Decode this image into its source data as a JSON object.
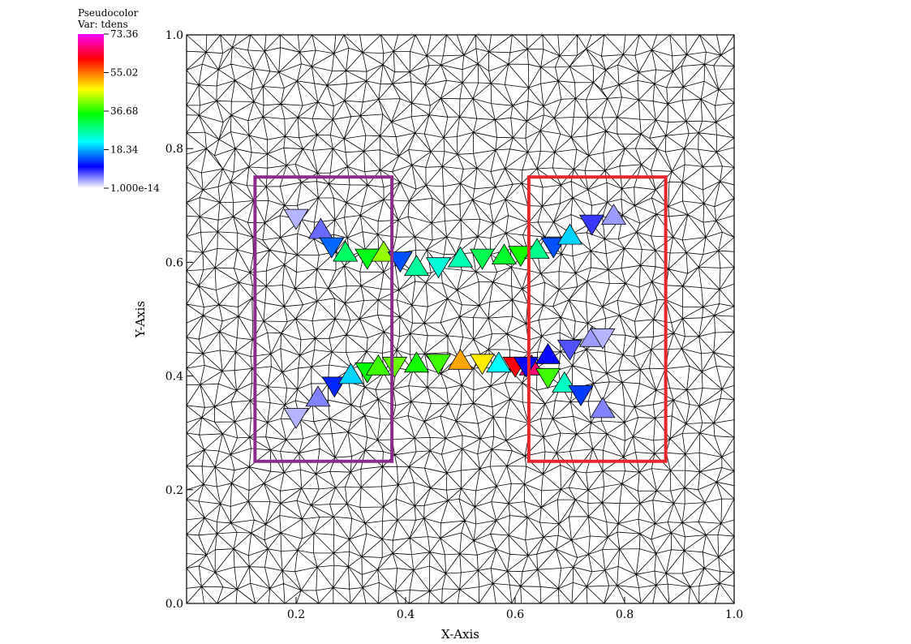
{
  "chart_data": {
    "type": "mesh",
    "legend": {
      "title": "Pseudocolor",
      "variable": "Var: tdens",
      "tick_labels": [
        "73.36",
        "55.02",
        "36.68",
        "18.34",
        "1.000e-14"
      ],
      "tick_values": [
        73.36,
        55.02,
        36.68,
        18.34,
        0.0
      ],
      "min": 0.0,
      "max": 73.36,
      "colors": [
        "#ff00ff",
        "#ff0000",
        "#ffff00",
        "#00ff00",
        "#00ffff",
        "#0000ff",
        "#ffffff"
      ]
    },
    "xlabel": "X-Axis",
    "ylabel": "Y-Axis",
    "xlim": [
      0.0,
      1.0
    ],
    "ylim": [
      0.0,
      1.0
    ],
    "x_ticks": [
      0.2,
      0.4,
      0.6,
      0.8,
      1.0
    ],
    "x_tick_labels": [
      "0.2",
      "0.4",
      "0.6",
      "0.8",
      "1.0"
    ],
    "y_ticks": [
      0.0,
      0.2,
      0.4,
      0.6,
      0.8,
      1.0
    ],
    "y_tick_labels": [
      "0.0",
      "0.2",
      "0.4",
      "0.6",
      "0.8",
      "1.0"
    ],
    "regions": [
      {
        "color": "#8e2a8e",
        "x0": 0.125,
        "x1": 0.375,
        "y0": 0.25,
        "y1": 0.75
      },
      {
        "color": "#e8252a",
        "x0": 0.625,
        "x1": 0.875,
        "y0": 0.25,
        "y1": 0.75
      }
    ],
    "paths": [
      {
        "points": [
          [
            0.2,
            0.68
          ],
          [
            0.245,
            0.655
          ],
          [
            0.265,
            0.63
          ],
          [
            0.29,
            0.615
          ],
          [
            0.33,
            0.61
          ],
          [
            0.36,
            0.615
          ],
          [
            0.39,
            0.605
          ],
          [
            0.42,
            0.59
          ],
          [
            0.46,
            0.595
          ],
          [
            0.5,
            0.605
          ],
          [
            0.54,
            0.61
          ],
          [
            0.58,
            0.61
          ],
          [
            0.61,
            0.615
          ],
          [
            0.64,
            0.62
          ],
          [
            0.67,
            0.63
          ],
          [
            0.7,
            0.645
          ],
          [
            0.74,
            0.67
          ],
          [
            0.78,
            0.68
          ]
        ],
        "values": [
          3,
          6,
          15,
          30,
          34,
          42,
          14,
          27,
          24,
          26,
          31,
          33,
          36,
          28,
          14,
          20,
          8,
          4
        ]
      },
      {
        "points": [
          [
            0.2,
            0.33
          ],
          [
            0.24,
            0.36
          ],
          [
            0.27,
            0.385
          ],
          [
            0.3,
            0.4
          ],
          [
            0.33,
            0.41
          ],
          [
            0.35,
            0.415
          ],
          [
            0.38,
            0.42
          ],
          [
            0.42,
            0.42
          ],
          [
            0.46,
            0.425
          ],
          [
            0.5,
            0.425
          ],
          [
            0.54,
            0.425
          ],
          [
            0.57,
            0.42
          ],
          [
            0.6,
            0.42
          ],
          [
            0.63,
            0.415
          ],
          [
            0.66,
            0.4
          ],
          [
            0.69,
            0.385
          ],
          [
            0.72,
            0.37
          ],
          [
            0.76,
            0.34
          ]
        ],
        "values": [
          3,
          5,
          12,
          20,
          35,
          38,
          40,
          36,
          38,
          52,
          48,
          22,
          62,
          67,
          38,
          25,
          13,
          5
        ]
      },
      {
        "points": [
          [
            0.62,
            0.42
          ],
          [
            0.66,
            0.435
          ],
          [
            0.7,
            0.45
          ],
          [
            0.74,
            0.465
          ],
          [
            0.76,
            0.47
          ]
        ],
        "values": [
          10,
          10,
          7,
          4,
          3
        ]
      }
    ]
  }
}
